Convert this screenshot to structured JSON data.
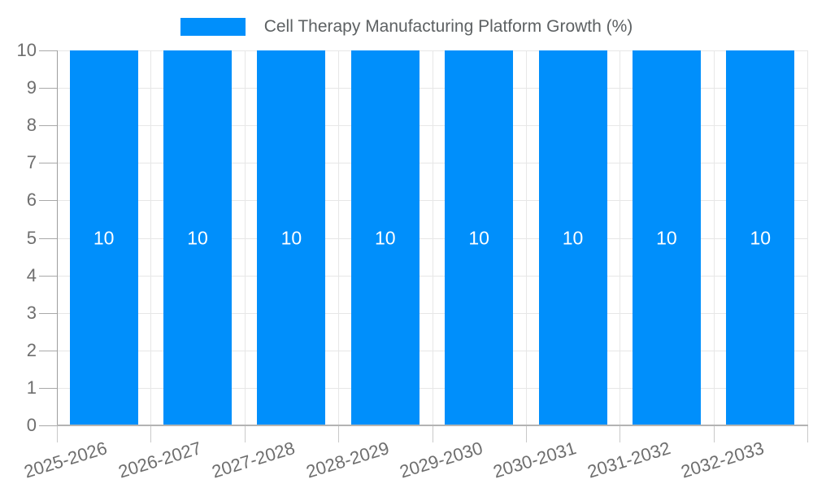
{
  "chart_data": {
    "type": "bar",
    "title": "Cell Therapy Manufacturing Platform Growth (%)",
    "categories": [
      "2025-2026",
      "2026-2027",
      "2027-2028",
      "2028-2029",
      "2029-2030",
      "2030-2031",
      "2031-2032",
      "2032-2033"
    ],
    "values": [
      10,
      10,
      10,
      10,
      10,
      10,
      10,
      10
    ],
    "data_labels": [
      "10",
      "10",
      "10",
      "10",
      "10",
      "10",
      "10",
      "10"
    ],
    "xlabel": "",
    "ylabel": "",
    "ylim": [
      0,
      10
    ],
    "yticks": [
      0,
      1,
      2,
      3,
      4,
      5,
      6,
      7,
      8,
      9,
      10
    ],
    "ytick_labels": [
      "0",
      "1",
      "2",
      "3",
      "4",
      "5",
      "6",
      "7",
      "8",
      "9",
      "10"
    ],
    "grid": true,
    "legend_position": "top"
  },
  "legend": {
    "label": "Cell Therapy Manufacturing Platform Growth (%)",
    "swatch_color": "#008FFB"
  },
  "colors": {
    "bar": "#008FFB",
    "data_label": "#FFFFFF",
    "grid": "#E7E7E7",
    "axis_text": "#6E6E6E",
    "legend_text": "#5D6163",
    "background": "#FFFFFF"
  }
}
